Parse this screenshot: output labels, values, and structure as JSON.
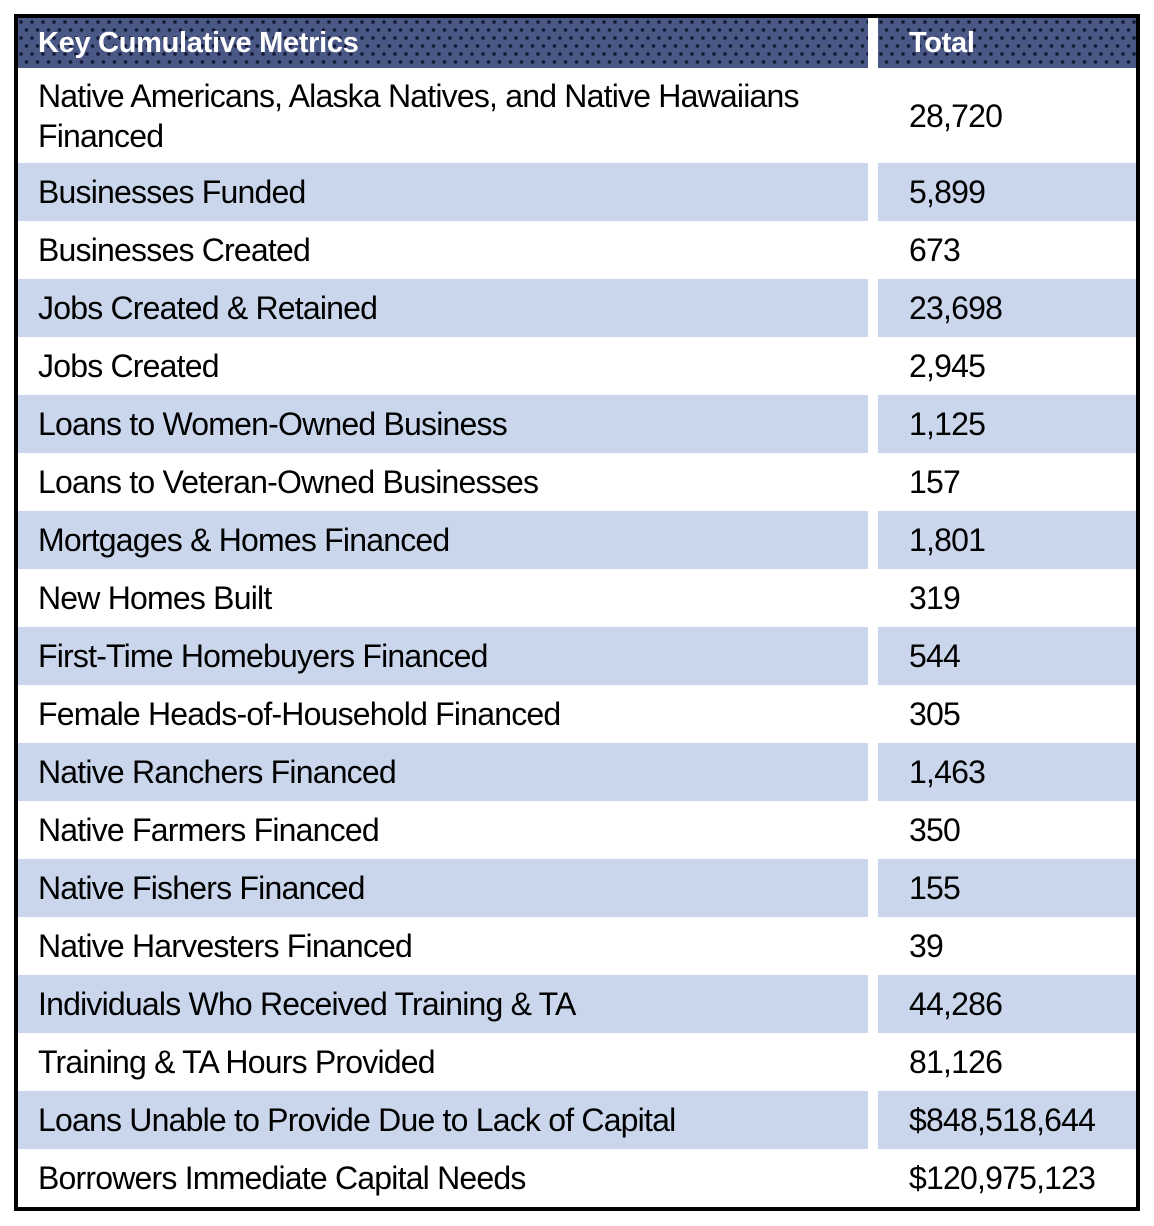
{
  "chart_data": {
    "type": "table",
    "title": "Key Cumulative Metrics",
    "columns": [
      "Key Cumulative Metrics",
      "Total"
    ],
    "rows": [
      {
        "label": "Native Americans, Alaska Natives, and Native Hawaiians Financed",
        "value": "28,720"
      },
      {
        "label": "Businesses Funded",
        "value": "5,899"
      },
      {
        "label": "Businesses Created",
        "value": "673"
      },
      {
        "label": "Jobs Created & Retained",
        "value": "23,698"
      },
      {
        "label": "Jobs Created",
        "value": "2,945"
      },
      {
        "label": "Loans to Women-Owned Business",
        "value": "1,125"
      },
      {
        "label": "Loans to Veteran-Owned Businesses",
        "value": "157"
      },
      {
        "label": "Mortgages & Homes Financed",
        "value": "1,801"
      },
      {
        "label": "New Homes Built",
        "value": "319"
      },
      {
        "label": "First-Time Homebuyers Financed",
        "value": "544"
      },
      {
        "label": "Female Heads-of-Household Financed",
        "value": "305"
      },
      {
        "label": "Native Ranchers Financed",
        "value": "1,463"
      },
      {
        "label": "Native Farmers Financed",
        "value": "350"
      },
      {
        "label": "Native Fishers Financed",
        "value": "155"
      },
      {
        "label": "Native Harvesters Financed",
        "value": "39"
      },
      {
        "label": "Individuals Who Received Training & TA",
        "value": "44,286"
      },
      {
        "label": "Training & TA Hours Provided",
        "value": "81,126"
      },
      {
        "label": "Loans Unable to Provide Due to Lack of Capital",
        "value": "$848,518,644"
      },
      {
        "label": "Borrowers Immediate Capital Needs",
        "value": "$120,975,123"
      }
    ],
    "layout": {
      "banding": "alternating white and light blue rows",
      "header_texture": "dotted pattern"
    },
    "colors": {
      "header_bg": "#4a5886",
      "header_dots": "#141c38",
      "header_text": "#ffffff",
      "band_blue": "#c9d6eb",
      "row_white": "#ffffff",
      "body_text": "#000000",
      "outer_border": "#000000",
      "column_gutter": "#ffffff"
    }
  }
}
